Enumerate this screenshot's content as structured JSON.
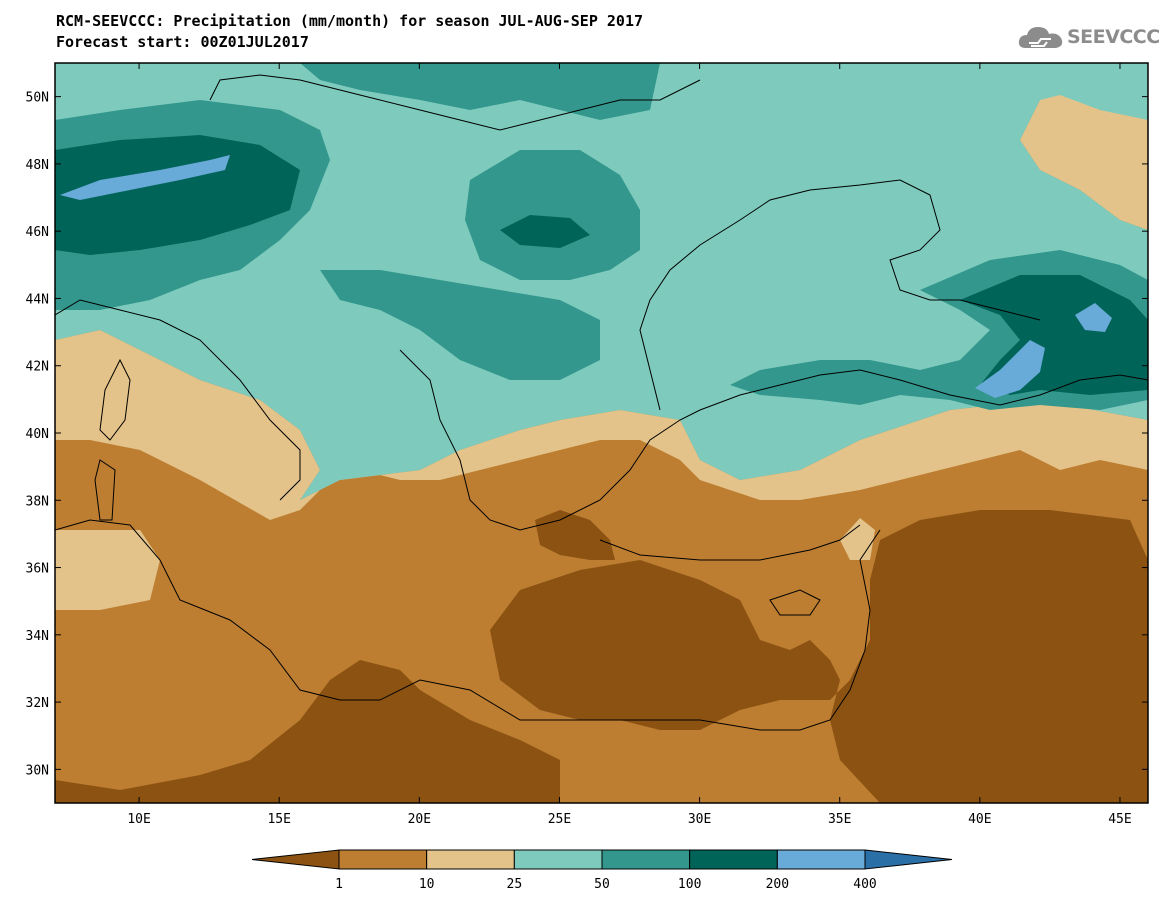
{
  "title": {
    "line1": "RCM-SEEVCCC: Precipitation (mm/month) for season JUL-AUG-SEP 2017",
    "line2": "Forecast start: 00Z01JUL2017"
  },
  "logo": {
    "icon": "cloud-icon",
    "text": "SEEVCCC"
  },
  "map": {
    "lon_range": [
      7,
      46
    ],
    "lat_range": [
      29,
      51
    ],
    "lon_ticks": [
      "10E",
      "15E",
      "20E",
      "25E",
      "30E",
      "35E",
      "40E",
      "45E"
    ],
    "lat_ticks": [
      "30N",
      "32N",
      "34N",
      "36N",
      "38N",
      "40N",
      "42N",
      "44N",
      "46N",
      "48N",
      "50N"
    ],
    "variable": "Precipitation",
    "units": "mm/month"
  },
  "colorbar": {
    "labels": [
      "1",
      "10",
      "25",
      "50",
      "100",
      "200",
      "400"
    ],
    "colors": [
      "#8b5212",
      "#bd7e32",
      "#e3c38a",
      "#7ecbbd",
      "#33978d",
      "#006558",
      "#68aad8",
      "#2b6fa7"
    ]
  },
  "palette": {
    "very_dry": "#8b5212",
    "dry": "#bd7e32",
    "moderate": "#e3c38a",
    "light_teal": "#7ecbbd",
    "teal": "#33978d",
    "dark_teal": "#006558",
    "blue": "#68aad8",
    "dark_blue": "#2b6fa7"
  }
}
